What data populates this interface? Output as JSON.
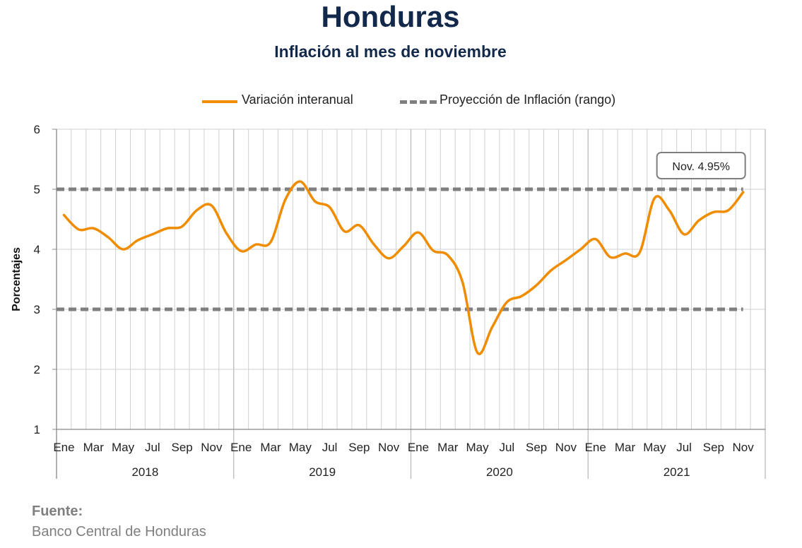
{
  "header": {
    "title": "Honduras",
    "subtitle": "Inflación al mes de noviembre"
  },
  "source": {
    "label": "Fuente:",
    "text": "Banco Central de Honduras"
  },
  "colors": {
    "series": "#f08c00",
    "band": "#7f7f7f",
    "title": "#13294b",
    "grid": "#d0d0d0"
  },
  "chart_data": {
    "type": "line",
    "title": "Inflación al mes de noviembre",
    "ylabel": "Porcentajes",
    "ylim": [
      1,
      6
    ],
    "yticks": [
      1,
      2,
      3,
      4,
      5,
      6
    ],
    "grid": true,
    "legend_position": "top",
    "month_labels": [
      "Ene",
      "Mar",
      "May",
      "Jul",
      "Sep",
      "Nov"
    ],
    "years": [
      "2018",
      "2019",
      "2020",
      "2021"
    ],
    "series": [
      {
        "name": "Variación interanual",
        "style": "solid",
        "values": [
          4.57,
          4.33,
          4.35,
          4.2,
          4.0,
          4.15,
          4.25,
          4.35,
          4.38,
          4.65,
          4.73,
          4.27,
          3.97,
          4.08,
          4.12,
          4.83,
          5.13,
          4.8,
          4.7,
          4.3,
          4.4,
          4.08,
          3.85,
          4.05,
          4.28,
          3.98,
          3.9,
          3.45,
          2.28,
          2.7,
          3.12,
          3.22,
          3.4,
          3.65,
          3.82,
          4.0,
          4.17,
          3.87,
          3.93,
          3.95,
          4.85,
          4.65,
          4.25,
          4.48,
          4.62,
          4.65,
          4.95
        ]
      },
      {
        "name": "Proyección de Inflación (rango)",
        "style": "dashed",
        "upper": 5,
        "lower": 3
      }
    ],
    "annotations": [
      {
        "text": "Nov. 4.95%",
        "x_index": 46,
        "value": 4.95
      }
    ]
  }
}
